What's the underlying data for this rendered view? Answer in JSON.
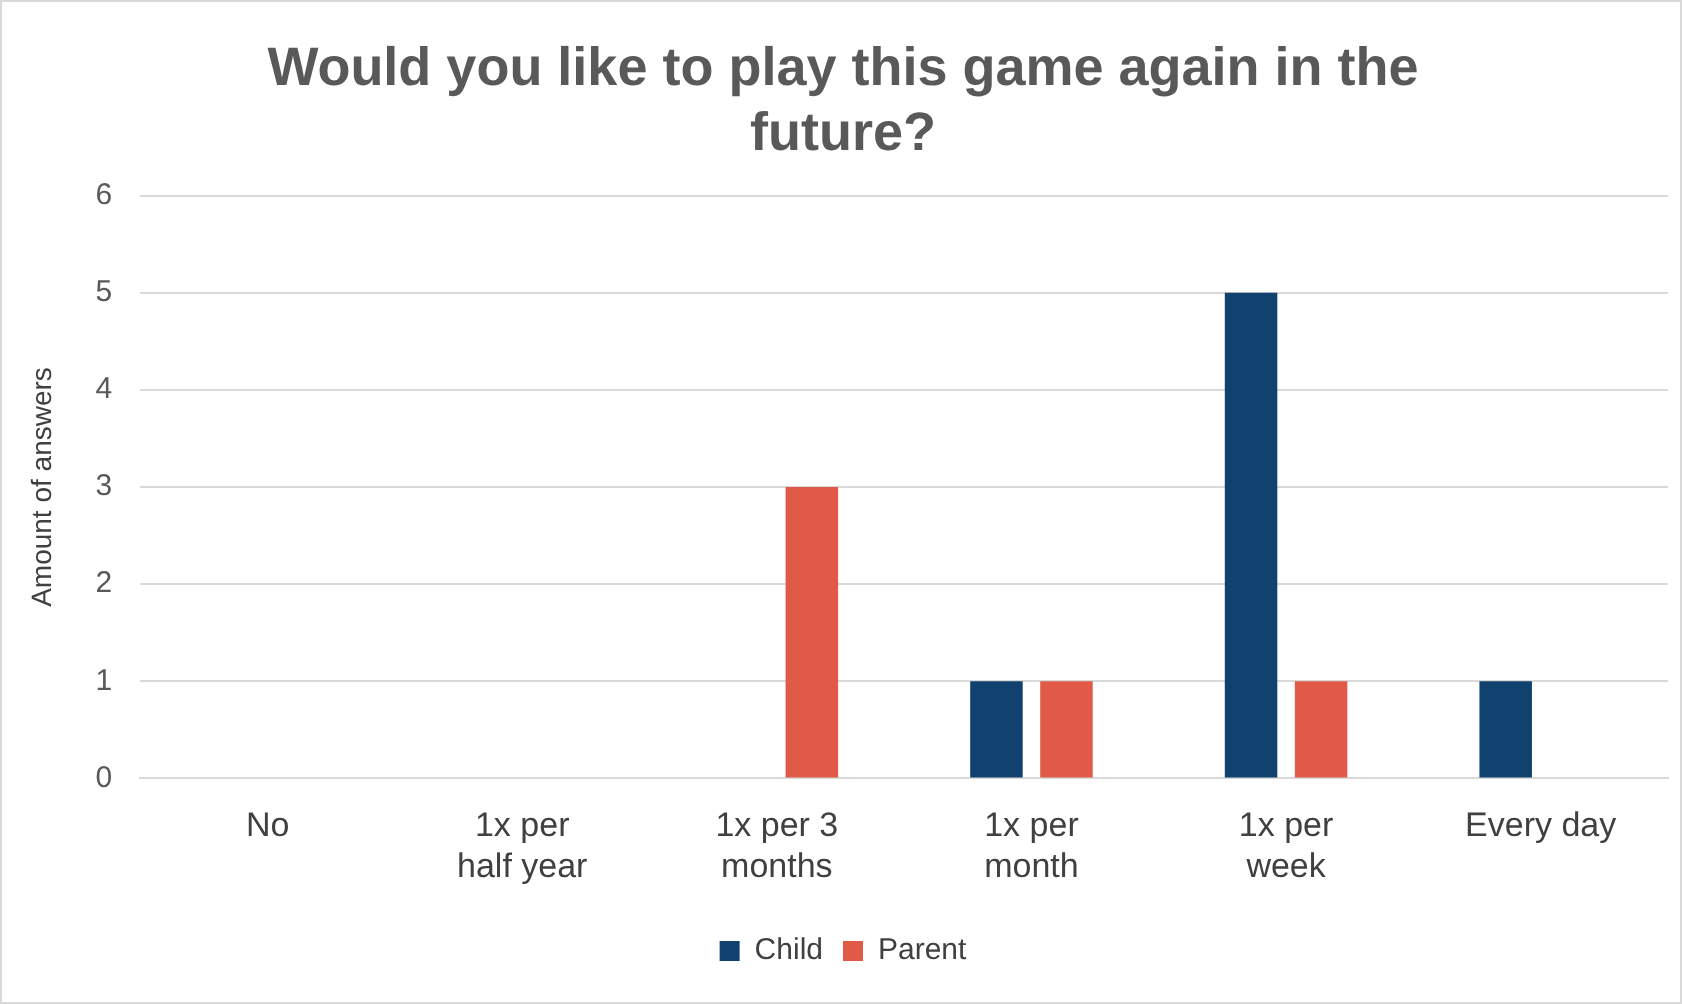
{
  "chart_data": {
    "type": "bar",
    "title": "Would you like to play this game again in the future?",
    "ylabel": "Amount of answers",
    "categories": [
      "No",
      "1x per half year",
      "1x per 3 months",
      "1x per month",
      "1x per week",
      "Every day"
    ],
    "series": [
      {
        "name": "Child",
        "color": "#11426f",
        "values": [
          0,
          0,
          0,
          1,
          5,
          1
        ]
      },
      {
        "name": "Parent",
        "color": "#e05a47",
        "values": [
          0,
          0,
          3,
          1,
          1,
          0
        ]
      }
    ],
    "ylim": [
      0,
      6
    ],
    "yticks": [
      0,
      1,
      2,
      3,
      4,
      5,
      6
    ],
    "grid": "y",
    "legend": "bottom"
  }
}
